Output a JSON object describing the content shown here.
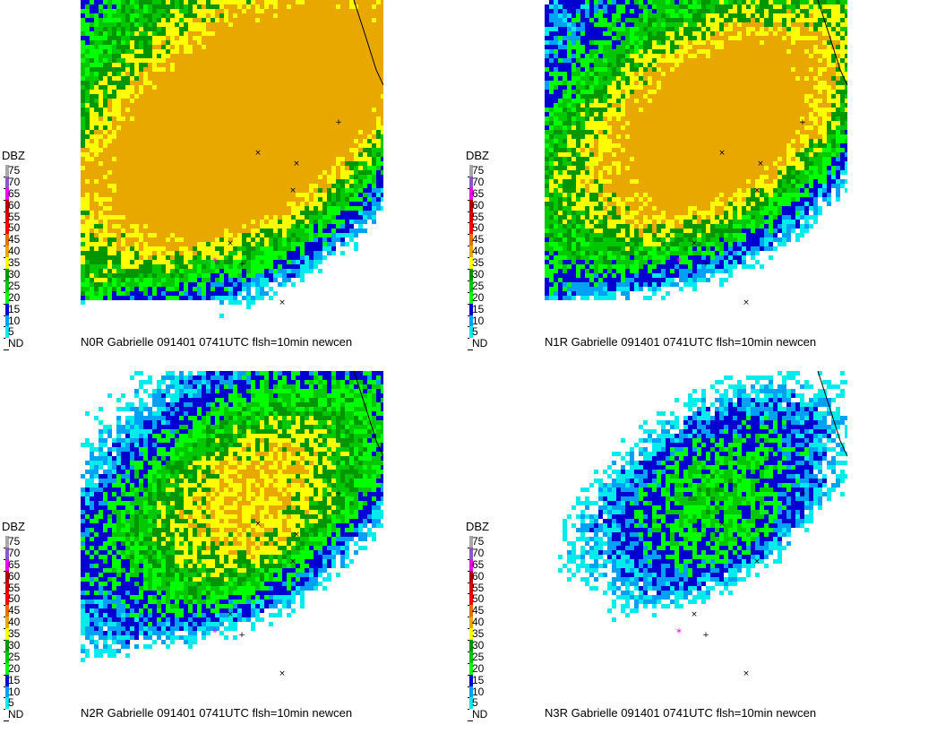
{
  "legend": {
    "title": "DBZ",
    "levels": [
      {
        "label": "75",
        "color": "#a8a8a8"
      },
      {
        "label": "70",
        "color": "#8c58c8"
      },
      {
        "label": "65",
        "color": "#f000f0"
      },
      {
        "label": "60",
        "color": "#b40000"
      },
      {
        "label": "55",
        "color": "#dc0000"
      },
      {
        "label": "50",
        "color": "#ff0000"
      },
      {
        "label": "45",
        "color": "#e87000"
      },
      {
        "label": "40",
        "color": "#e8a800"
      },
      {
        "label": "35",
        "color": "#ffff00"
      },
      {
        "label": "30",
        "color": "#009600"
      },
      {
        "label": "25",
        "color": "#00c800"
      },
      {
        "label": "20",
        "color": "#00ff00"
      },
      {
        "label": "15",
        "color": "#0000d0"
      },
      {
        "label": "10",
        "color": "#00a0f6"
      },
      {
        "label": "5",
        "color": "#00ecec"
      },
      {
        "label": "ND",
        "color": "#ffffff"
      }
    ]
  },
  "panels": [
    {
      "id": "n0r",
      "caption": "N0R Gabrielle 091401 0741UTC  flsh=10min newcen",
      "tilt": 0
    },
    {
      "id": "n1r",
      "caption": "N1R Gabrielle 091401 0741UTC  flsh=10min newcen",
      "tilt": 1
    },
    {
      "id": "n2r",
      "caption": "N2R Gabrielle 091401 0741UTC  flsh=10min newcen",
      "tilt": 2
    },
    {
      "id": "n3r",
      "caption": "N3R Gabrielle 091401 0741UTC  flsh=10min newcen",
      "tilt": 3
    }
  ],
  "map_colors": {
    "dbz40": "#e8a800",
    "dbz35": "#ffff00",
    "dbz30": "#009600",
    "dbz25": "#00c800",
    "dbz20": "#00ff00",
    "dbz15": "#0000d0",
    "dbz10": "#00a0f6",
    "dbz5": "#00ecec",
    "nodata": "#ffffff",
    "center": "#f000f0"
  }
}
